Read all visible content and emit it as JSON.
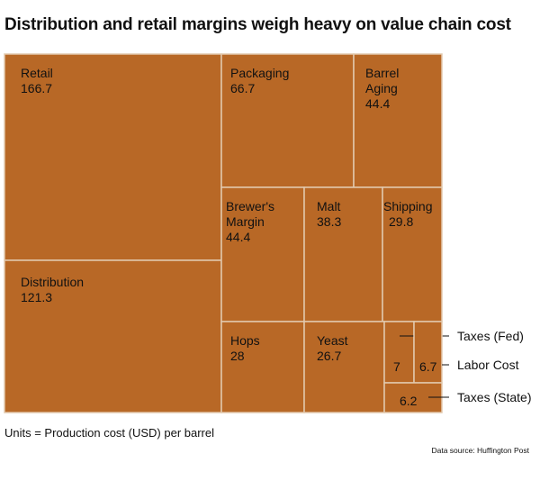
{
  "title": "Distribution and retail margins weigh heavy on value chain cost",
  "units_note": "Units = Production cost (USD) per barrel",
  "source_note": "Data source: Huffington Post",
  "colors": {
    "tile": "#b86826",
    "tile_border": "#e2c9ae",
    "text": "#111111",
    "callout_line": "#111111"
  },
  "chart_data": {
    "type": "treemap",
    "title": "Distribution and retail margins weigh heavy on value chain cost",
    "units": "Units = Production cost (USD) per barrel",
    "nodes": [
      {
        "label": "Retail",
        "value": 166.7,
        "value_text": "166.7"
      },
      {
        "label": "Distribution",
        "value": 121.3,
        "value_text": "121.3"
      },
      {
        "label": "Packaging",
        "value": 66.7,
        "value_text": "66.7"
      },
      {
        "label": "Barrel Aging",
        "value": 44.4,
        "value_text": "44.4"
      },
      {
        "label": "Brewer's Margin",
        "value": 44.4,
        "value_text": "44.4"
      },
      {
        "label": "Malt",
        "value": 38.3,
        "value_text": "38.3"
      },
      {
        "label": "Shipping",
        "value": 29.8,
        "value_text": "29.8"
      },
      {
        "label": "Hops",
        "value": 28,
        "value_text": "28"
      },
      {
        "label": "Yeast",
        "value": 26.7,
        "value_text": "26.7"
      },
      {
        "label": "Taxes (Fed)",
        "value": 7,
        "value_text": "7"
      },
      {
        "label": "Labor Cost",
        "value": 6.7,
        "value_text": "6.7"
      },
      {
        "label": "Taxes (State)",
        "value": 6.2,
        "value_text": "6.2"
      }
    ]
  }
}
